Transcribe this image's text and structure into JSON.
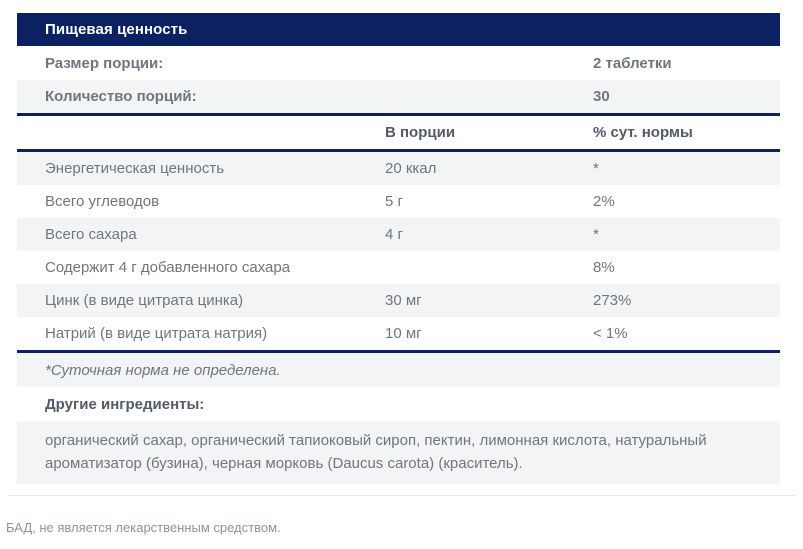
{
  "colors": {
    "header_bg": "#0b2161",
    "row_alt_bg": "#f3f4f5",
    "text_gray": "#6e7682"
  },
  "table": {
    "title": "Пищевая ценность",
    "serving_info": [
      {
        "label": "Размер порции:",
        "value": "2 таблетки"
      },
      {
        "label": "Количество порций:",
        "value": "30"
      }
    ],
    "columns": {
      "amount": "В порции",
      "dv": "% сут. нормы"
    },
    "rows": [
      {
        "name": "Энергетическая ценность",
        "amount": "20 ккал",
        "dv": "*"
      },
      {
        "name": "Всего углеводов",
        "amount": "5 г",
        "dv": "2%"
      },
      {
        "name": "Всего сахара",
        "amount": "4 г",
        "dv": "*"
      },
      {
        "name": "Содержит 4 г добавленного сахара",
        "amount": "",
        "dv": "8%"
      },
      {
        "name": "Цинк (в виде цитрата цинка)",
        "amount": "30 мг",
        "dv": "273%"
      },
      {
        "name": "Натрий (в виде цитрата натрия)",
        "amount": "10 мг",
        "dv": "< 1%"
      }
    ],
    "footnote": "*Суточная норма не определена.",
    "other_ingredients_label": "Другие ингредиенты:",
    "other_ingredients": "органический сахар, органический тапиоковый сироп, пектин, лимонная кислота, натуральный ароматизатор (бузина), черная морковь (Daucus carota) (краситель)."
  },
  "footer": {
    "disclaimer": "БАД, не является лекарственным средством."
  }
}
